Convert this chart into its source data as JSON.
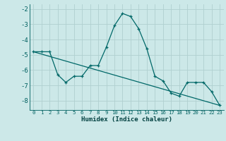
{
  "xlabel": "Humidex (Indice chaleur)",
  "bg_color": "#cce8e8",
  "grid_color": "#b0d0d0",
  "line_color": "#006868",
  "xlim": [
    -0.5,
    23.5
  ],
  "ylim": [
    -8.6,
    -1.7
  ],
  "yticks": [
    -8,
    -7,
    -6,
    -5,
    -4,
    -3,
    -2
  ],
  "xticks": [
    0,
    1,
    2,
    3,
    4,
    5,
    6,
    7,
    8,
    9,
    10,
    11,
    12,
    13,
    14,
    15,
    16,
    17,
    18,
    19,
    20,
    21,
    22,
    23
  ],
  "line1_x": [
    0,
    1,
    2,
    3,
    4,
    5,
    6,
    7,
    8,
    9,
    10,
    11,
    12,
    13,
    14,
    15,
    16,
    17,
    18,
    19,
    20,
    21,
    22,
    23
  ],
  "line1_y": [
    -4.8,
    -4.8,
    -4.8,
    -6.3,
    -6.8,
    -6.4,
    -6.4,
    -5.7,
    -5.7,
    -4.5,
    -3.1,
    -2.3,
    -2.5,
    -3.3,
    -4.6,
    -6.4,
    -6.7,
    -7.5,
    -7.7,
    -6.8,
    -6.8,
    -6.8,
    -7.4,
    -8.3
  ],
  "line2_x": [
    0,
    23
  ],
  "line2_y": [
    -4.8,
    -8.3
  ]
}
